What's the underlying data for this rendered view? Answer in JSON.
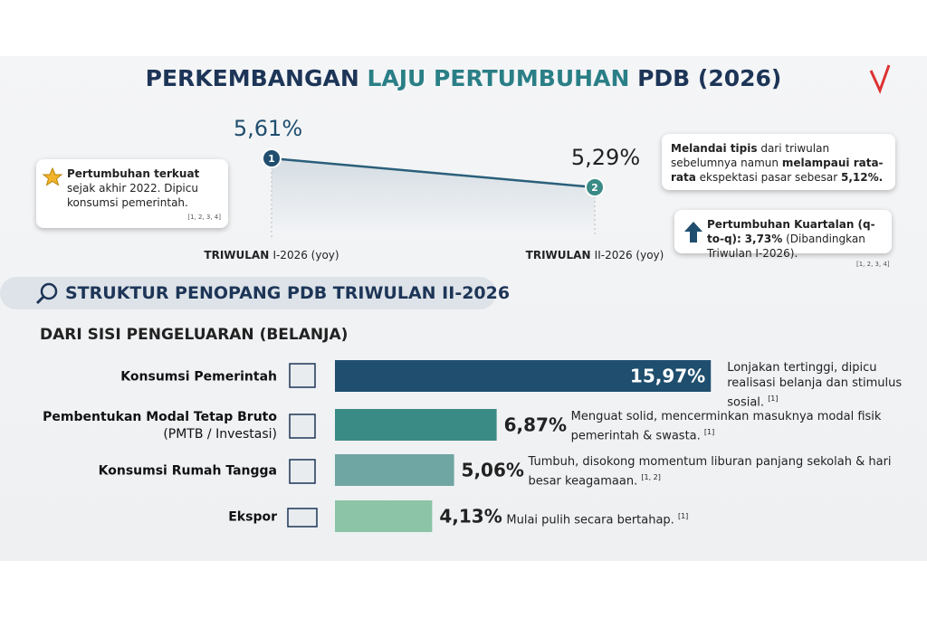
{
  "title": [
    {
      "text": "PERKEMBANGAN ",
      "color": "#1d3557"
    },
    {
      "text": "LAJU PERTUMBUHAN",
      "color": "#2a7f86"
    },
    {
      "text": " PDB (2026)",
      "color": "#1d3557"
    }
  ],
  "growth": {
    "points": [
      {
        "marker": "1",
        "value": 5.61,
        "value_label": "5,61%",
        "label": [
          {
            "text": "TRIWULAN ",
            "bold": true
          },
          {
            "text": "I-2026 (yoy)",
            "bold": false
          }
        ]
      },
      {
        "marker": "2",
        "value": 5.29,
        "value_label": "5,29%",
        "label": [
          {
            "text": "TRIWULAN ",
            "bold": true
          },
          {
            "text": "II-2026 (yoy)",
            "bold": false
          }
        ]
      }
    ],
    "callout_left": {
      "segments": [
        {
          "text": "Pertumbuhan terkuat",
          "bold": true
        },
        {
          "text": " sejak akhir 2022. Dipicu konsumsi pemerintah.",
          "bold": false
        }
      ],
      "refs": "[1, 2, 3, 4]"
    },
    "callout_right": {
      "segments": [
        {
          "text": "Melandai tipis",
          "bold": true
        },
        {
          "text": " dari triwulan sebelumnya namun ",
          "bold": false
        },
        {
          "text": "melampaui rata-rata",
          "bold": true
        },
        {
          "text": " ekspektasi pasar sebesar ",
          "bold": false
        },
        {
          "text": "5,12%.",
          "bold": true
        }
      ]
    },
    "callout_qtq": {
      "segments": [
        {
          "text": "Pertumbuhan Kuartalan (q-to-q):",
          "bold": true
        },
        {
          "text": " ",
          "bold": false
        },
        {
          "text": "3,73%",
          "bold": true
        },
        {
          "text": " (Dibandingkan Triwulan I-2026).",
          "bold": false
        }
      ],
      "refs": "[1, 2, 3, 4]"
    }
  },
  "section": {
    "title": "STRUKTUR PENOPANG PDB TRIWULAN II-2026",
    "subtitle": "DARI SISI PENGELUARAN (BELANJA)"
  },
  "bars": [
    {
      "name": [
        "Konsumsi Pemerintah"
      ],
      "value": 15.97,
      "value_label": "15,97%",
      "color": "#1f4e6e",
      "note": "Lonjakan tertinggi, dipicu realisasi belanja dan stimulus sosial.",
      "refs": "[1]"
    },
    {
      "name": [
        "Pembentukan Modal Tetap Bruto",
        "(PMTB / Investasi)"
      ],
      "value": 6.87,
      "value_label": "6,87%",
      "color": "#3a8a86",
      "note": "Menguat solid, mencerminkan masuknya modal fisik pemerintah & swasta.",
      "refs": "[1]"
    },
    {
      "name": [
        "Konsumsi Rumah Tangga"
      ],
      "value": 5.06,
      "value_label": "5,06%",
      "color": "#6fa5a2",
      "note": "Tumbuh, disokong momentum liburan panjang sekolah & hari besar keagamaan.",
      "refs": "[1, 2]"
    },
    {
      "name": [
        "Ekspor"
      ],
      "value": 4.13,
      "value_label": "4,13%",
      "color": "#8cc4a8",
      "note": "Mulai pulih secara bertahap.",
      "refs": "[1]"
    }
  ]
}
